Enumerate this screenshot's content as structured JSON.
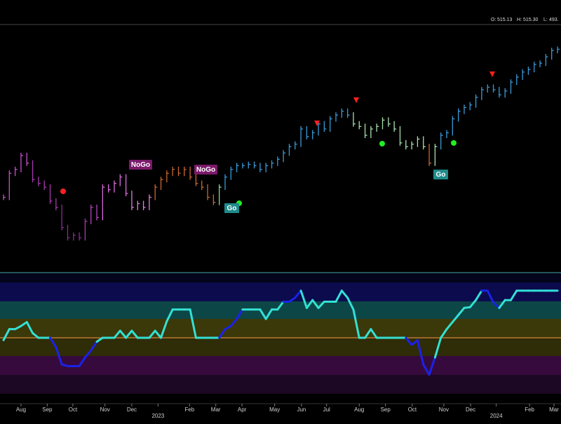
{
  "header": {
    "ohlc": [
      "O:",
      "515.13",
      "H:",
      "515.30",
      "L:",
      "493."
    ]
  },
  "signals": [
    "NoGo",
    "NoGo",
    "Go",
    "Go"
  ],
  "chart_data": {
    "type": "price",
    "ylim": [
      335,
      530
    ],
    "values": [
      394,
      413,
      416,
      427,
      421,
      408,
      405,
      402,
      391,
      386,
      370,
      362,
      364,
      362,
      375,
      386,
      378,
      402,
      400,
      405,
      410,
      397,
      386,
      389,
      386,
      394,
      402,
      408,
      413,
      416,
      413,
      416,
      410,
      405,
      402,
      394,
      390,
      402,
      410,
      416,
      419,
      419,
      420,
      419,
      416,
      419,
      421,
      424,
      429,
      434,
      436,
      448,
      442,
      445,
      452,
      448,
      456,
      459,
      462,
      459,
      452,
      450,
      443,
      448,
      450,
      455,
      452,
      448,
      437,
      434,
      436,
      440,
      434,
      421,
      434,
      443,
      445,
      456,
      462,
      465,
      467,
      473,
      479,
      481,
      479,
      475,
      478,
      485,
      489,
      493,
      495,
      499,
      500,
      505,
      510,
      511
    ],
    "colors": [
      "#c552cf",
      "#c552cf",
      "#c552cf",
      "#c552cf",
      "#c552cf",
      "#a83aae",
      "#a83aae",
      "#a83aae",
      "#a83aae",
      "#a83aae",
      "#8e2c96",
      "#8e2c96",
      "#8e2c96",
      "#8e2c96",
      "#a83aae",
      "#b745bd",
      "#b745bd",
      "#d96cd9",
      "#d96cd9",
      "#d96cd9",
      "#d96cd9",
      "#d96cd9",
      "#e07ee0",
      "#e07ee0",
      "#e07ee0",
      "#e07ee0",
      "#c8682e",
      "#c8682e",
      "#c8682e",
      "#c8682e",
      "#c8682e",
      "#c8682e",
      "#c8682e",
      "#c8682e",
      "#c8682e",
      "#c8682e",
      "#c8682e",
      "#8fd68f",
      "#3a9ad9",
      "#3a9ad9",
      "#3a9ad9",
      "#3a9ad9",
      "#3a9ad9",
      "#3a9ad9",
      "#3a9ad9",
      "#3a9ad9",
      "#3a9ad9",
      "#3a9ad9",
      "#3a9ad9",
      "#3a9ad9",
      "#3a9ad9",
      "#3a9ad9",
      "#3a9ad9",
      "#3a9ad9",
      "#3a9ad9",
      "#3a9ad9",
      "#3a9ad9",
      "#3a9ad9",
      "#3a9ad9",
      "#3a9ad9",
      "#a8e0b0",
      "#a8e0b0",
      "#a8e0b0",
      "#a8e0b0",
      "#a8e0b0",
      "#a8e0b0",
      "#a8e0b0",
      "#a8e0b0",
      "#a8e0b0",
      "#a8e0b0",
      "#a8e0b0",
      "#a8e0b0",
      "#a8e0b0",
      "#c8682e",
      "#a8e0b0",
      "#3a9ad9",
      "#3a9ad9",
      "#3a9ad9",
      "#3a9ad9",
      "#3a9ad9",
      "#3a9ad9",
      "#3a9ad9",
      "#3a9ad9",
      "#3a9ad9",
      "#3a9ad9",
      "#3a9ad9",
      "#3a9ad9",
      "#3a9ad9",
      "#3a9ad9",
      "#3a9ad9",
      "#3a9ad9",
      "#3a9ad9",
      "#3a9ad9",
      "#3a9ad9",
      "#3a9ad9",
      "#3a9ad9"
    ],
    "oscillator": {
      "ylim": [
        -8.3,
        8.3
      ],
      "values": [
        -0.3,
        1.1,
        1.1,
        1.5,
        2.0,
        0.6,
        0,
        0,
        0,
        -1.2,
        -3.4,
        -3.6,
        -3.6,
        -3.6,
        -2.5,
        -1.6,
        -0.5,
        0,
        0,
        0,
        0.9,
        0,
        0.9,
        0,
        0,
        0,
        0.9,
        0,
        2.1,
        3.6,
        3.6,
        3.6,
        3.6,
        0,
        0,
        0,
        0,
        0,
        1.1,
        1.5,
        2.4,
        3.6,
        3.6,
        3.6,
        3.6,
        2.4,
        3.6,
        3.6,
        4.6,
        4.6,
        5.1,
        6.0,
        3.8,
        4.8,
        3.8,
        4.6,
        4.6,
        4.6,
        6.0,
        5.1,
        3.6,
        0,
        0,
        1.1,
        0,
        0,
        0,
        0,
        0,
        0,
        -0.9,
        -0.3,
        -3.4,
        -4.7,
        -2.5,
        0,
        1.1,
        2.0,
        2.9,
        3.8,
        3.9,
        4.8,
        6.0,
        6.0,
        4.5,
        3.8,
        4.8,
        4.8,
        6.0,
        6.0,
        6.0,
        6.0,
        6.0,
        6.0,
        6.0,
        6.0
      ],
      "colors": [
        "#33e0d4",
        "#33e0d4",
        "#33e0d4",
        "#33e0d4",
        "#33e0d4",
        "#33e0d4",
        "#33e0d4",
        "#33e0d4",
        "#33e0d4",
        "#1b22e8",
        "#1b22e8",
        "#1b22e8",
        "#1b22e8",
        "#1b22e8",
        "#1b22e8",
        "#1b22e8",
        "#1b22e8",
        "#33e0d4",
        "#33e0d4",
        "#33e0d4",
        "#33e0d4",
        "#33e0d4",
        "#33e0d4",
        "#33e0d4",
        "#33e0d4",
        "#33e0d4",
        "#33e0d4",
        "#33e0d4",
        "#33e0d4",
        "#33e0d4",
        "#33e0d4",
        "#33e0d4",
        "#33e0d4",
        "#33e0d4",
        "#33e0d4",
        "#33e0d4",
        "#33e0d4",
        "#33e0d4",
        "#1b22e8",
        "#1b22e8",
        "#1b22e8",
        "#1b22e8",
        "#33e0d4",
        "#33e0d4",
        "#33e0d4",
        "#33e0d4",
        "#33e0d4",
        "#33e0d4",
        "#33e0d4",
        "#1b22e8",
        "#1b22e8",
        "#1b22e8",
        "#33e0d4",
        "#33e0d4",
        "#33e0d4",
        "#33e0d4",
        "#33e0d4",
        "#33e0d4",
        "#33e0d4",
        "#33e0d4",
        "#33e0d4",
        "#33e0d4",
        "#33e0d4",
        "#33e0d4",
        "#33e0d4",
        "#33e0d4",
        "#33e0d4",
        "#33e0d4",
        "#33e0d4",
        "#33e0d4",
        "#1b22e8",
        "#1b22e8",
        "#1b22e8",
        "#1b22e8",
        "#1b22e8",
        "#33e0d4",
        "#33e0d4",
        "#33e0d4",
        "#33e0d4",
        "#33e0d4",
        "#33e0d4",
        "#33e0d4",
        "#33e0d4",
        "#1b22e8",
        "#1b22e8",
        "#1b22e8",
        "#33e0d4",
        "#33e0d4",
        "#33e0d4",
        "#33e0d4",
        "#33e0d4",
        "#33e0d4",
        "#33e0d4",
        "#33e0d4",
        "#33e0d4",
        "#33e0d4"
      ]
    },
    "xlim": [
      -0.6,
      95.6
    ],
    "xticks": [
      {
        "value": 3.0,
        "label": "Aug"
      },
      {
        "value": 7.5,
        "label": "Sep"
      },
      {
        "value": 11.9,
        "label": "Oct"
      },
      {
        "value": 17.4,
        "label": "Nov"
      },
      {
        "value": 22.0,
        "label": "Dec"
      },
      {
        "value": 31.9,
        "label": "Feb"
      },
      {
        "value": 36.4,
        "label": "Mar"
      },
      {
        "value": 40.9,
        "label": "Apr"
      },
      {
        "value": 46.5,
        "label": "May"
      },
      {
        "value": 51.1,
        "label": "Jun"
      },
      {
        "value": 55.4,
        "label": "Jul"
      },
      {
        "value": 61.0,
        "label": "Aug"
      },
      {
        "value": 65.5,
        "label": "Sep"
      },
      {
        "value": 70.1,
        "label": "Oct"
      },
      {
        "value": 75.5,
        "label": "Nov"
      },
      {
        "value": 80.1,
        "label": "Dec"
      },
      {
        "value": 90.2,
        "label": "Feb"
      },
      {
        "value": 94.4,
        "label": "Mar"
      }
    ],
    "year_ticks": [
      {
        "value": 26.5,
        "label": "2023"
      },
      {
        "value": 84.5,
        "label": "2024"
      }
    ]
  }
}
